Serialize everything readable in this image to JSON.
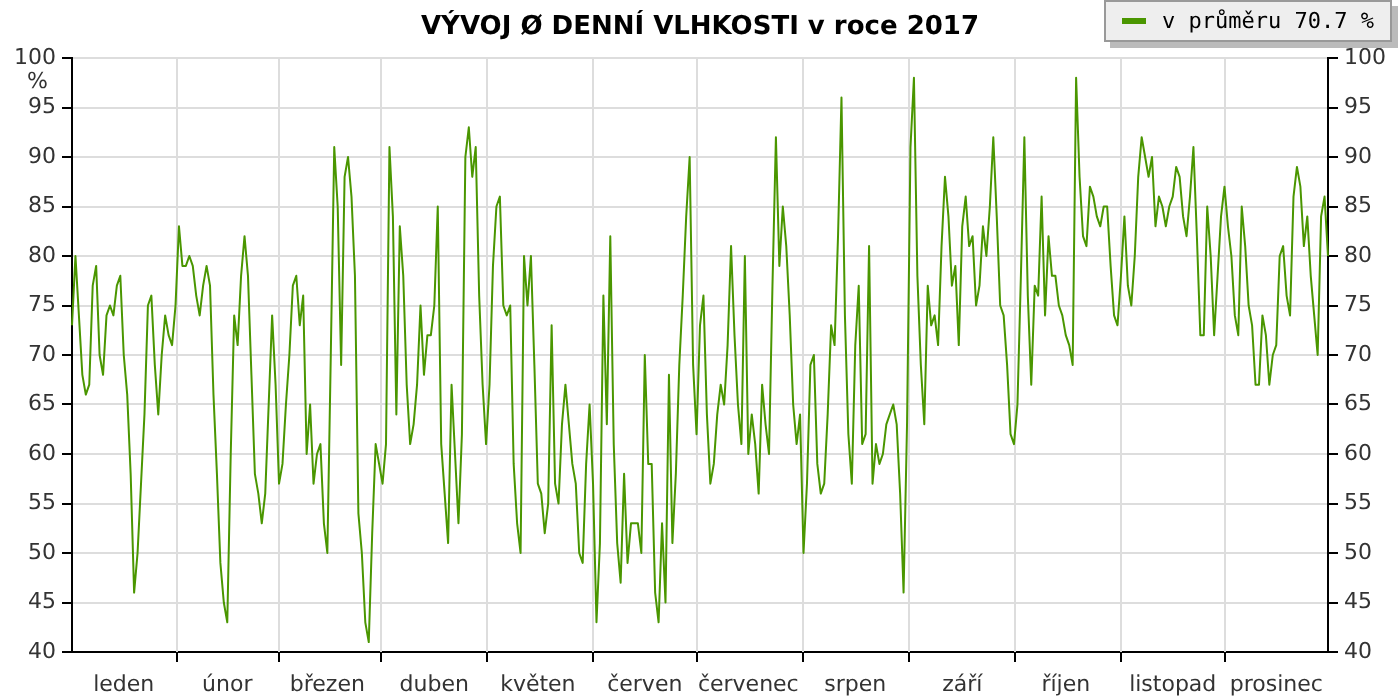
{
  "chart_data": {
    "type": "line",
    "title": "VÝVOJ Ø DENNÍ VLHKOSTI v roce 2017",
    "ylabel": "%",
    "legend": "top right",
    "grid": true,
    "categories": [
      null,
      null,
      null,
      null,
      null,
      null,
      null,
      null,
      null,
      null,
      null,
      null,
      null,
      null,
      null,
      "leden",
      null,
      null,
      null,
      null,
      null,
      null,
      null,
      null,
      null,
      null,
      null,
      null,
      null,
      null,
      null,
      null,
      null,
      null,
      null,
      null,
      null,
      null,
      null,
      null,
      null,
      null,
      null,
      null,
      null,
      "únor",
      null,
      null,
      null,
      null,
      null,
      null,
      null,
      null,
      null,
      null,
      null,
      null,
      null,
      null,
      null,
      null,
      null,
      null,
      null,
      null,
      null,
      null,
      null,
      null,
      null,
      null,
      null,
      null,
      "březen",
      null,
      null,
      null,
      null,
      null,
      null,
      null,
      null,
      null,
      null,
      null,
      null,
      null,
      null,
      null,
      null,
      null,
      null,
      null,
      null,
      null,
      null,
      null,
      null,
      null,
      null,
      null,
      null,
      null,
      null,
      "duben",
      null,
      null,
      null,
      null,
      null,
      null,
      null,
      null,
      null,
      null,
      null,
      null,
      null,
      null,
      null,
      null,
      null,
      null,
      null,
      null,
      null,
      null,
      null,
      null,
      null,
      null,
      null,
      null,
      null,
      "květen",
      null,
      null,
      null,
      null,
      null,
      null,
      null,
      null,
      null,
      null,
      null,
      null,
      null,
      null,
      null,
      null,
      null,
      null,
      null,
      null,
      null,
      null,
      null,
      null,
      null,
      null,
      null,
      null,
      null,
      null,
      "červen",
      null,
      null,
      null,
      null,
      null,
      null,
      null,
      null,
      null,
      null,
      null,
      null,
      null,
      null,
      null,
      null,
      null,
      null,
      null,
      null,
      null,
      null,
      null,
      null,
      null,
      null,
      null,
      null,
      null,
      "červenec",
      null,
      null,
      null,
      null,
      null,
      null,
      null,
      null,
      null,
      null,
      null,
      null,
      null,
      null,
      null,
      null,
      null,
      null,
      null,
      null,
      null,
      null,
      null,
      null,
      null,
      null,
      null,
      null,
      null,
      null,
      "srpen",
      null,
      null,
      null,
      null,
      null,
      null,
      null,
      null,
      null,
      null,
      null,
      null,
      null,
      null,
      null,
      null,
      null,
      null,
      null,
      null,
      null,
      null,
      null,
      null,
      null,
      null,
      null,
      null,
      null,
      null,
      "září",
      null,
      null,
      null,
      null,
      null,
      null,
      null,
      null,
      null,
      null,
      null,
      null,
      null,
      null,
      null,
      null,
      null,
      null,
      null,
      null,
      null,
      null,
      null,
      null,
      null,
      null,
      null,
      null,
      null,
      "říjen",
      null,
      null,
      null,
      null,
      null,
      null,
      null,
      null,
      null,
      null,
      null,
      null,
      null,
      null,
      null,
      null,
      null,
      null,
      null,
      null,
      null,
      null,
      null,
      null,
      null,
      null,
      null,
      null,
      null,
      null,
      "listopad",
      null,
      null,
      null,
      null,
      null,
      null,
      null,
      null,
      null,
      null,
      null,
      null,
      null,
      null,
      null,
      null,
      null,
      null,
      null,
      null,
      null,
      null,
      null,
      null,
      null,
      null,
      null,
      null,
      null,
      "prosinec",
      null,
      null,
      null,
      null,
      null,
      null,
      null,
      null,
      null,
      null,
      null,
      null,
      null,
      null,
      null
    ],
    "ylim": [
      40,
      100
    ],
    "yticks": [
      40,
      45,
      50,
      55,
      60,
      65,
      70,
      75,
      80,
      85,
      90,
      95,
      100
    ],
    "y2lim": [
      40,
      100
    ],
    "y2ticks": [
      40,
      45,
      50,
      55,
      60,
      65,
      70,
      75,
      80,
      85,
      90,
      95,
      100
    ],
    "series": [
      {
        "name": "v průměru 70.7 %",
        "color": "#4a9600",
        "values": [
          73,
          80,
          74,
          68,
          66,
          67,
          77,
          79,
          70,
          68,
          74,
          75,
          74,
          77,
          78,
          70,
          66,
          58,
          46,
          50,
          57,
          64,
          75,
          76,
          69,
          64,
          70,
          74,
          72,
          71,
          75,
          83,
          79,
          79,
          80,
          79,
          76,
          74,
          77,
          79,
          77,
          66,
          58,
          49,
          45,
          43,
          60,
          74,
          71,
          78,
          82,
          78,
          68,
          58,
          56,
          53,
          56,
          65,
          74,
          67,
          57,
          59,
          65,
          70,
          77,
          78,
          73,
          76,
          60,
          65,
          57,
          60,
          61,
          53,
          50,
          70,
          91,
          85,
          69,
          88,
          90,
          86,
          78,
          54,
          50,
          43,
          41,
          52,
          61,
          59,
          57,
          61,
          91,
          84,
          64,
          83,
          78,
          67,
          61,
          63,
          67,
          75,
          68,
          72,
          72,
          75,
          85,
          61,
          56,
          51,
          67,
          60,
          53,
          62,
          90,
          93,
          88,
          91,
          76,
          67,
          61,
          67,
          79,
          85,
          86,
          75,
          74,
          75,
          59,
          53,
          50,
          80,
          75,
          80,
          69,
          57,
          56,
          52,
          55,
          73,
          57,
          55,
          63,
          67,
          63,
          59,
          57,
          50,
          49,
          59,
          65,
          57,
          43,
          51,
          76,
          63,
          82,
          61,
          51,
          47,
          58,
          49,
          53,
          53,
          53,
          50,
          70,
          59,
          59,
          46,
          43,
          53,
          45,
          68,
          51,
          58,
          69,
          76,
          84,
          90,
          69,
          62,
          73,
          76,
          64,
          57,
          59,
          64,
          67,
          65,
          71,
          81,
          72,
          65,
          61,
          80,
          60,
          64,
          61,
          56,
          67,
          63,
          60,
          77,
          92,
          79,
          85,
          81,
          74,
          65,
          61,
          64,
          50,
          57,
          69,
          70,
          59,
          56,
          57,
          64,
          73,
          71,
          82,
          96,
          74,
          62,
          57,
          71,
          77,
          61,
          62,
          81,
          57,
          61,
          59,
          60,
          63,
          64,
          65,
          63,
          56,
          46,
          63,
          91,
          98,
          78,
          69,
          63,
          77,
          73,
          74,
          71,
          81,
          88,
          84,
          77,
          79,
          71,
          83,
          86,
          81,
          82,
          75,
          77,
          83,
          80,
          85,
          92,
          84,
          75,
          74,
          69,
          62,
          61,
          65,
          78,
          92,
          76,
          67,
          77,
          76,
          86,
          74,
          82,
          78,
          78,
          75,
          74,
          72,
          71,
          69,
          98,
          88,
          82,
          81,
          87,
          86,
          84,
          83,
          85,
          85,
          79,
          74,
          73,
          78,
          84,
          77,
          75,
          80,
          88,
          92,
          90,
          88,
          90,
          83,
          86,
          85,
          83,
          85,
          86,
          89,
          88,
          84,
          82,
          86,
          91,
          82,
          72,
          72,
          85,
          80,
          72,
          78,
          84,
          87,
          83,
          80,
          74,
          72,
          85,
          81,
          75,
          73,
          67,
          67,
          74,
          72,
          67,
          70,
          71,
          80,
          81,
          76,
          74,
          86,
          89,
          87,
          81,
          84,
          78,
          74,
          70,
          84,
          86,
          80
        ]
      }
    ]
  }
}
